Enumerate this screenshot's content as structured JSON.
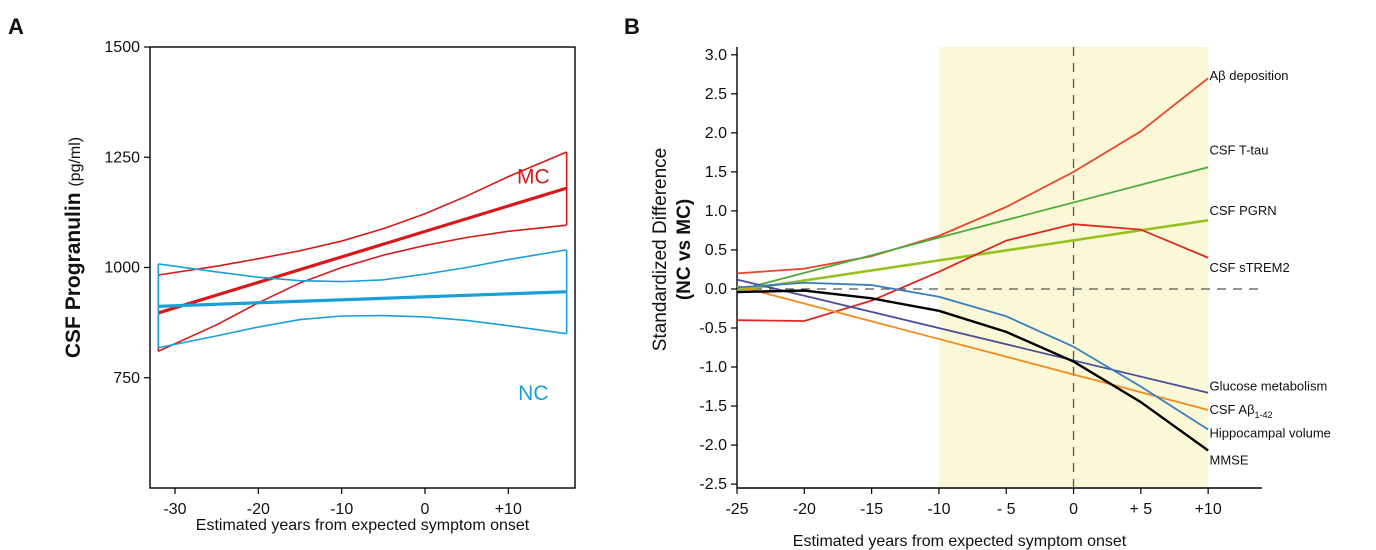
{
  "chart_data": [
    {
      "type": "line",
      "panel": "A",
      "xlabel": "Estimated years from expected symptom onset",
      "ylabel_main": "CSF Progranulin",
      "ylabel_unit": "(pg/ml)",
      "xlim": [
        -33,
        18
      ],
      "ylim": [
        500,
        1500
      ],
      "x_ticks": [
        -30,
        -20,
        -10,
        0,
        10
      ],
      "x_tick_labels": [
        "-30",
        "-20",
        "-10",
        "0",
        "+10"
      ],
      "y_ticks": [
        750,
        1000,
        1250,
        1500
      ],
      "y_tick_labels": [
        "750",
        "1000",
        "1250",
        "1500"
      ],
      "grid": false,
      "groups": [
        {
          "name": "MC",
          "color": "#d7191c",
          "label_x": 13,
          "label_y": 1190,
          "x_range": [
            -32,
            17
          ],
          "fit_x": [
            -32,
            17
          ],
          "fit_y": [
            897,
            1180
          ],
          "upper_x": [
            -32,
            -25,
            -20,
            -15,
            -10,
            -5,
            0,
            5,
            10,
            17
          ],
          "upper_y": [
            983,
            1003,
            1020,
            1038,
            1060,
            1088,
            1122,
            1162,
            1206,
            1262
          ],
          "lower_x": [
            -32,
            -25,
            -20,
            -15,
            -10,
            -5,
            0,
            5,
            10,
            17
          ],
          "lower_y": [
            810,
            870,
            920,
            965,
            1000,
            1028,
            1050,
            1068,
            1082,
            1096
          ]
        },
        {
          "name": "NC",
          "color": "#1a9fd9",
          "label_x": 13,
          "label_y": 700,
          "x_range": [
            -32,
            17
          ],
          "fit_x": [
            -32,
            17
          ],
          "fit_y": [
            912,
            945
          ],
          "upper_x": [
            -32,
            -25,
            -20,
            -15,
            -10,
            -5,
            0,
            5,
            10,
            17
          ],
          "upper_y": [
            1008,
            990,
            978,
            970,
            968,
            972,
            985,
            1000,
            1018,
            1040
          ],
          "lower_x": [
            -32,
            -25,
            -20,
            -15,
            -10,
            -5,
            0,
            5,
            10,
            17
          ],
          "lower_y": [
            818,
            845,
            865,
            882,
            890,
            891,
            888,
            880,
            868,
            850
          ]
        }
      ]
    },
    {
      "type": "line",
      "panel": "B",
      "xlabel": "Estimated years from expected symptom onset",
      "ylabel_line1": "Standardized Difference",
      "ylabel_line2": "(NC vs MC)",
      "xlim": [
        -25,
        14
      ],
      "ylim": [
        -2.55,
        3.1
      ],
      "x_ticks": [
        -25,
        -20,
        -15,
        -10,
        -5,
        0,
        5,
        10
      ],
      "x_tick_labels": [
        "-25",
        "-20",
        "-15",
        "-10",
        "- 5",
        "0",
        "+ 5",
        "+10"
      ],
      "y_ticks": [
        -2.5,
        -2.0,
        -1.5,
        -1.0,
        -0.5,
        0.0,
        0.5,
        1.0,
        1.5,
        2.0,
        2.5,
        3.0
      ],
      "y_tick_labels": [
        "-2.5",
        "-2.0",
        "-1.5",
        "-1.0",
        "-0.5",
        "0.0",
        "0.5",
        "1.0",
        "1.5",
        "2.0",
        "2.5",
        "3.0"
      ],
      "shaded_region_x": [
        -10,
        10
      ],
      "shaded_color": "#fbf8d7",
      "reference_lines": {
        "horizontal_y": 0,
        "vertical_x": 0
      },
      "grid": false,
      "series": [
        {
          "name": "Aβ deposition",
          "label_main": "Aβ deposition",
          "label_sub": "",
          "color": "#e8472b",
          "label_x": 10.1,
          "label_y": 2.68,
          "x": [
            -25,
            -20,
            -15,
            -10,
            -5,
            0,
            5,
            10
          ],
          "y": [
            0.2,
            0.26,
            0.42,
            0.68,
            1.05,
            1.5,
            2.02,
            2.7
          ]
        },
        {
          "name": "CSF T-tau",
          "label_main": "CSF T-tau",
          "label_sub": "",
          "color": "#4daa3c",
          "label_x": 10.1,
          "label_y": 1.72,
          "x": [
            -25,
            10
          ],
          "y": [
            -0.02,
            1.56
          ]
        },
        {
          "name": "CSF PGRN",
          "label_main": "CSF PGRN",
          "label_sub": "",
          "color": "#96c21f",
          "label_x": 10.1,
          "label_y": 0.95,
          "x": [
            -25,
            10
          ],
          "y": [
            -0.02,
            0.88
          ]
        },
        {
          "name": "CSF sTREM2",
          "label_main": "CSF sTREM2",
          "label_sub": "",
          "color": "#dc2a22",
          "label_x": 10.1,
          "label_y": 0.22,
          "x": [
            -25,
            -20,
            -15,
            -10,
            -5,
            0,
            5,
            10
          ],
          "y": [
            -0.4,
            -0.41,
            -0.15,
            0.22,
            0.62,
            0.83,
            0.76,
            0.4
          ]
        },
        {
          "name": "Glucose metabolism",
          "label_main": "Glucose metabolism",
          "label_sub": "",
          "color": "#4a4e96",
          "label_x": 10.1,
          "label_y": -1.3,
          "x": [
            -25,
            10
          ],
          "y": [
            0.12,
            -1.33
          ]
        },
        {
          "name": "CSF Aβ1-42",
          "label_main": "CSF Aβ",
          "label_sub": "1-42",
          "color": "#f28c1e",
          "label_x": 10.1,
          "label_y": -1.6,
          "x": [
            -25,
            10
          ],
          "y": [
            0.04,
            -1.55
          ]
        },
        {
          "name": "Hippocampal volume",
          "label_main": "Hippocampal volume",
          "label_sub": "",
          "color": "#3a7ebf",
          "label_x": 10.1,
          "label_y": -1.9,
          "x": [
            -25,
            -20,
            -15,
            -10,
            -5,
            0,
            5,
            10
          ],
          "y": [
            0.02,
            0.08,
            0.05,
            -0.1,
            -0.35,
            -0.74,
            -1.25,
            -1.8
          ]
        },
        {
          "name": "MMSE",
          "label_main": "MMSE",
          "label_sub": "",
          "color": "#000000",
          "label_x": 10.1,
          "label_y": -2.25,
          "x": [
            -25,
            -20,
            -15,
            -10,
            -5,
            0,
            5,
            10
          ],
          "y": [
            -0.04,
            -0.02,
            -0.12,
            -0.28,
            -0.55,
            -0.93,
            -1.45,
            -2.07
          ]
        }
      ]
    }
  ]
}
